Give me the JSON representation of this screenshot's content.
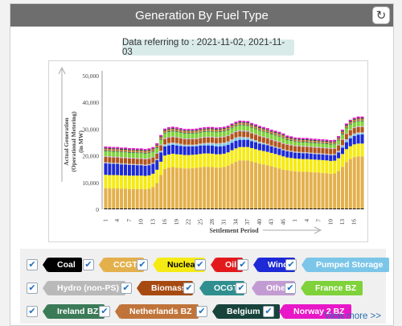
{
  "header": {
    "title": "Generation By Fuel Type",
    "refresh_icon": "refresh-icon"
  },
  "date_label": "Data referring to : 2021-11-02, 2021-11-03",
  "view_more": "View more >>",
  "chart_data": {
    "type": "bar",
    "stacked": true,
    "ylabel": "Actual Generation\n(Operational Metering)\n(in MW)",
    "xlabel": "Settlement Period",
    "ylim": [
      0,
      50000
    ],
    "y_ticks": [
      "0",
      "10,000",
      "20,000",
      "30,000",
      "40,000",
      "50,000"
    ],
    "y_tick_values": [
      0,
      10000,
      20000,
      30000,
      40000,
      50000
    ],
    "x_ticks": [
      "1",
      "4",
      "7",
      "10",
      "13",
      "16",
      "19",
      "22",
      "25",
      "28",
      "31",
      "34",
      "37",
      "40",
      "43",
      "46",
      "1",
      "4",
      "7",
      "10",
      "13",
      "16"
    ],
    "period_count": 66,
    "series": [
      {
        "name": "Coal",
        "color": "#111111",
        "values": [
          300,
          300,
          300,
          300,
          300,
          300,
          300,
          300,
          300,
          300,
          300,
          300,
          300,
          300,
          300,
          300,
          300,
          300,
          300,
          300,
          300,
          300,
          300,
          300,
          300,
          300,
          300,
          300,
          300,
          300,
          300,
          300,
          300,
          300,
          300,
          300,
          300,
          300,
          300,
          300,
          300,
          300,
          300,
          300,
          300,
          300,
          300,
          300,
          300,
          300,
          300,
          300,
          300,
          300,
          300,
          300,
          300,
          300,
          300,
          300,
          300,
          300,
          300,
          300,
          300,
          300
        ]
      },
      {
        "name": "CCGT",
        "color": "#e3b04b",
        "values": [
          7600,
          7500,
          7500,
          7500,
          7400,
          7400,
          7300,
          7300,
          7300,
          7300,
          7200,
          7400,
          8000,
          9500,
          12500,
          14800,
          15200,
          15500,
          15300,
          15200,
          15000,
          15000,
          15100,
          15200,
          15400,
          15600,
          15600,
          15500,
          15300,
          15300,
          15500,
          16000,
          16800,
          17500,
          18000,
          18000,
          18000,
          17600,
          17200,
          16800,
          16500,
          16200,
          15800,
          15400,
          15000,
          14500,
          14300,
          14100,
          13900,
          13800,
          13700,
          13700,
          13600,
          13500,
          13400,
          13300,
          13200,
          13000,
          13100,
          14000,
          15600,
          17400,
          18500,
          19200,
          19500,
          19500
        ]
      },
      {
        "name": "Nuclear",
        "color": "#f5ea14",
        "values": [
          5000,
          5000,
          5000,
          5000,
          5000,
          5000,
          5000,
          5000,
          5000,
          5000,
          5000,
          5000,
          5000,
          5000,
          5000,
          5000,
          5000,
          5000,
          5000,
          5000,
          5000,
          5000,
          5000,
          5000,
          5000,
          5000,
          5000,
          5000,
          5000,
          5000,
          5000,
          5000,
          5000,
          5000,
          5000,
          5000,
          5000,
          5000,
          5000,
          5000,
          5000,
          5000,
          5000,
          5000,
          5000,
          5000,
          4800,
          4800,
          4800,
          4800,
          4800,
          4800,
          4800,
          4800,
          4800,
          4800,
          4800,
          4800,
          4800,
          4800,
          4800,
          4800,
          4800,
          4800,
          4800,
          4800
        ]
      },
      {
        "name": "Oil",
        "color": "#e31a1c",
        "values": [
          0,
          0,
          0,
          0,
          0,
          0,
          0,
          0,
          0,
          0,
          0,
          0,
          0,
          0,
          0,
          0,
          0,
          0,
          0,
          0,
          0,
          0,
          0,
          0,
          0,
          0,
          0,
          0,
          0,
          0,
          0,
          0,
          0,
          0,
          0,
          0,
          0,
          0,
          0,
          0,
          0,
          0,
          0,
          0,
          0,
          0,
          0,
          0,
          0,
          0,
          0,
          0,
          0,
          0,
          0,
          0,
          0,
          0,
          0,
          0,
          0,
          0,
          0,
          0,
          0,
          0
        ]
      },
      {
        "name": "Wind",
        "color": "#1d2ad6",
        "values": [
          4300,
          4300,
          4200,
          4200,
          4100,
          4100,
          4000,
          4000,
          3900,
          3900,
          3800,
          3800,
          3700,
          3600,
          3500,
          3400,
          3400,
          3300,
          3300,
          3200,
          3200,
          3200,
          3100,
          3100,
          3100,
          3000,
          3000,
          3000,
          2900,
          2900,
          2900,
          2800,
          2800,
          2800,
          2700,
          2700,
          2700,
          2600,
          2600,
          2500,
          2500,
          2500,
          2400,
          2400,
          2400,
          2300,
          2300,
          2300,
          2200,
          2200,
          2200,
          2200,
          2100,
          2100,
          2100,
          2100,
          2100,
          2100,
          2100,
          2200,
          2400,
          2600,
          2900,
          3100,
          3300,
          3400
        ]
      },
      {
        "name": "Pumped Storage",
        "color": "#7bc6e8",
        "values": [
          0,
          0,
          0,
          0,
          0,
          0,
          0,
          0,
          0,
          0,
          0,
          0,
          0,
          0,
          200,
          400,
          500,
          500,
          500,
          400,
          300,
          300,
          300,
          300,
          400,
          500,
          600,
          700,
          800,
          900,
          900,
          900,
          900,
          900,
          800,
          700,
          600,
          500,
          400,
          300,
          200,
          100,
          0,
          0,
          0,
          0,
          0,
          0,
          0,
          0,
          0,
          0,
          0,
          0,
          0,
          0,
          0,
          0,
          0,
          200,
          500,
          700,
          700,
          600,
          500,
          400
        ]
      },
      {
        "name": "Hydro (non-PS)",
        "color": "#b9b9b9",
        "values": [
          400,
          400,
          400,
          400,
          400,
          400,
          400,
          400,
          400,
          400,
          400,
          400,
          400,
          400,
          400,
          400,
          400,
          400,
          400,
          400,
          400,
          400,
          400,
          400,
          400,
          400,
          400,
          400,
          400,
          400,
          400,
          400,
          400,
          400,
          400,
          400,
          400,
          400,
          400,
          400,
          400,
          400,
          400,
          400,
          400,
          400,
          400,
          400,
          400,
          400,
          400,
          400,
          400,
          400,
          400,
          400,
          400,
          400,
          400,
          400,
          400,
          400,
          400,
          400,
          400,
          400
        ]
      },
      {
        "name": "Biomass",
        "color": "#b0541c",
        "values": [
          2000,
          2000,
          2000,
          2000,
          2000,
          2000,
          2000,
          2000,
          2000,
          2000,
          2000,
          2000,
          2000,
          2000,
          2000,
          2000,
          2000,
          2000,
          2000,
          2000,
          2000,
          2000,
          2000,
          2000,
          2000,
          2000,
          2000,
          2000,
          2000,
          2000,
          2000,
          2000,
          2000,
          2000,
          2000,
          2000,
          2000,
          2000,
          2000,
          2000,
          2000,
          2000,
          2000,
          2000,
          2000,
          2000,
          2000,
          2000,
          2000,
          2000,
          2000,
          2000,
          2000,
          2000,
          2000,
          2000,
          2000,
          2000,
          2000,
          2000,
          2000,
          2000,
          2000,
          2000,
          2000,
          2000
        ]
      },
      {
        "name": "OCGT",
        "color": "#2f8f8f",
        "values": [
          0,
          0,
          0,
          0,
          0,
          0,
          0,
          0,
          0,
          0,
          0,
          0,
          0,
          0,
          0,
          0,
          0,
          0,
          0,
          0,
          0,
          0,
          0,
          0,
          0,
          0,
          0,
          0,
          0,
          0,
          0,
          0,
          0,
          0,
          100,
          100,
          100,
          0,
          0,
          0,
          0,
          0,
          0,
          0,
          0,
          0,
          0,
          0,
          0,
          0,
          0,
          0,
          0,
          0,
          0,
          0,
          0,
          0,
          0,
          0,
          0,
          0,
          0,
          0,
          0,
          0
        ]
      },
      {
        "name": "Other",
        "color": "#c9a3d6",
        "values": [
          300,
          300,
          300,
          300,
          300,
          300,
          300,
          300,
          300,
          300,
          300,
          300,
          300,
          300,
          300,
          300,
          300,
          300,
          300,
          300,
          300,
          300,
          300,
          300,
          300,
          300,
          300,
          300,
          300,
          300,
          300,
          300,
          300,
          300,
          300,
          300,
          300,
          300,
          300,
          300,
          300,
          300,
          300,
          300,
          300,
          300,
          300,
          300,
          300,
          300,
          300,
          300,
          300,
          300,
          300,
          300,
          300,
          300,
          300,
          300,
          300,
          300,
          300,
          300,
          300,
          300
        ]
      },
      {
        "name": "France BZ",
        "color": "#7fd23a",
        "values": [
          1800,
          1800,
          1800,
          1800,
          1800,
          1800,
          1800,
          1800,
          1800,
          1800,
          1800,
          1800,
          1800,
          1800,
          1800,
          1800,
          1800,
          1800,
          1800,
          1800,
          1800,
          1800,
          1800,
          1800,
          1800,
          1800,
          1800,
          1800,
          1800,
          1800,
          1800,
          1800,
          1800,
          1800,
          1800,
          1800,
          1800,
          1800,
          1800,
          1800,
          1800,
          1800,
          1800,
          1800,
          1800,
          1800,
          1500,
          1400,
          1300,
          1300,
          1300,
          1300,
          1300,
          1300,
          1300,
          1300,
          1300,
          1300,
          1300,
          1500,
          1700,
          1800,
          1800,
          1800,
          1800,
          1800
        ]
      },
      {
        "name": "Ireland BZ",
        "color": "#3a7a56",
        "values": [
          300,
          300,
          300,
          300,
          300,
          300,
          300,
          300,
          300,
          300,
          300,
          300,
          300,
          300,
          300,
          300,
          300,
          300,
          300,
          300,
          300,
          300,
          300,
          300,
          300,
          300,
          300,
          300,
          300,
          300,
          300,
          300,
          300,
          300,
          300,
          300,
          300,
          300,
          300,
          300,
          300,
          300,
          300,
          300,
          300,
          300,
          300,
          300,
          300,
          300,
          300,
          300,
          300,
          300,
          300,
          300,
          300,
          300,
          300,
          300,
          300,
          300,
          300,
          300,
          300,
          300
        ]
      },
      {
        "name": "Netherlands BZ",
        "color": "#c77a3a",
        "values": [
          700,
          700,
          700,
          700,
          700,
          700,
          700,
          700,
          700,
          700,
          700,
          700,
          700,
          700,
          700,
          700,
          700,
          700,
          700,
          700,
          700,
          700,
          700,
          700,
          700,
          700,
          700,
          700,
          700,
          700,
          700,
          700,
          700,
          700,
          700,
          700,
          700,
          700,
          700,
          700,
          700,
          700,
          700,
          700,
          700,
          700,
          600,
          600,
          600,
          600,
          600,
          600,
          600,
          600,
          600,
          600,
          600,
          600,
          600,
          600,
          700,
          700,
          700,
          700,
          700,
          700
        ]
      },
      {
        "name": "Belgium BZ",
        "color": "#17433b",
        "values": [
          300,
          300,
          300,
          300,
          300,
          300,
          300,
          300,
          300,
          300,
          300,
          300,
          300,
          300,
          300,
          300,
          300,
          300,
          300,
          300,
          300,
          300,
          300,
          300,
          300,
          300,
          300,
          300,
          300,
          300,
          300,
          300,
          300,
          300,
          300,
          300,
          300,
          300,
          300,
          300,
          300,
          300,
          300,
          300,
          300,
          300,
          300,
          300,
          300,
          300,
          300,
          300,
          300,
          300,
          300,
          300,
          300,
          300,
          300,
          300,
          300,
          300,
          300,
          300,
          300,
          300
        ]
      },
      {
        "name": "Norway 2 BZ",
        "color": "#e817c7",
        "values": [
          500,
          500,
          500,
          500,
          500,
          500,
          500,
          500,
          500,
          500,
          500,
          500,
          500,
          500,
          500,
          500,
          500,
          500,
          500,
          500,
          500,
          500,
          500,
          500,
          500,
          500,
          500,
          500,
          500,
          500,
          500,
          500,
          500,
          500,
          500,
          500,
          500,
          500,
          500,
          500,
          500,
          500,
          500,
          500,
          500,
          500,
          500,
          500,
          500,
          500,
          500,
          500,
          500,
          500,
          500,
          500,
          500,
          500,
          500,
          500,
          500,
          500,
          500,
          500,
          500,
          500
        ]
      }
    ],
    "grid": false,
    "legend_position": "bottom"
  },
  "legend": {
    "items": [
      {
        "label": "Coal",
        "bg": "#000000",
        "fg": "#ffffff"
      },
      {
        "label": "CCGT",
        "bg": "#e3b04b",
        "fg": "#ffffff"
      },
      {
        "label": "Nuclear",
        "bg": "#f5ea14",
        "fg": "#000000"
      },
      {
        "label": "Oil",
        "bg": "#e31a1c",
        "fg": "#ffffff"
      },
      {
        "label": "Wind",
        "bg": "#1d2ad6",
        "fg": "#ffffff"
      },
      {
        "label": "Pumped Storage",
        "bg": "#7bc6e8",
        "fg": "#ffffff"
      },
      {
        "label": "Hydro (non-PS)",
        "bg": "#b9b9b9",
        "fg": "#ffffff"
      },
      {
        "label": "Biomass",
        "bg": "#a64a12",
        "fg": "#ffffff"
      },
      {
        "label": "OCGT",
        "bg": "#2f8f8f",
        "fg": "#ffffff"
      },
      {
        "label": "Other",
        "bg": "#c39bd3",
        "fg": "#ffffff"
      },
      {
        "label": "France BZ",
        "bg": "#7fd23a",
        "fg": "#ffffff"
      },
      {
        "label": "Ireland BZ",
        "bg": "#3a7a56",
        "fg": "#ffffff"
      },
      {
        "label": "Netherlands BZ",
        "bg": "#c0743a",
        "fg": "#ffffff"
      },
      {
        "label": "Belgium BZ",
        "bg": "#17433b",
        "fg": "#ffffff"
      },
      {
        "label": "Norway 2 BZ",
        "bg": "#e817c7",
        "fg": "#ffffff"
      }
    ],
    "checked": true
  }
}
